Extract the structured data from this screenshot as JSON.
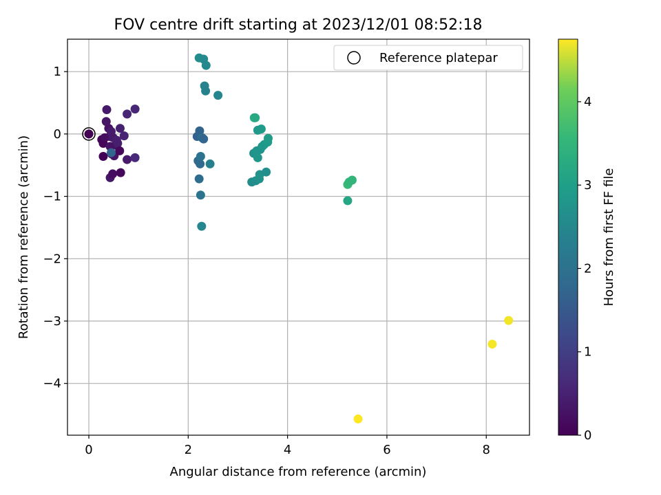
{
  "chart_data": {
    "type": "scatter",
    "title": "FOV centre drift starting at 2023/12/01 08:52:18",
    "xlabel": "Angular distance from reference (arcmin)",
    "ylabel": "Rotation from reference (arcmin)",
    "xlim": [
      -0.43,
      8.87
    ],
    "ylim": [
      -4.83,
      1.52
    ],
    "xticks": [
      0,
      2,
      4,
      6,
      8
    ],
    "xtick_labels": [
      "0",
      "2",
      "4",
      "6",
      "8"
    ],
    "yticks": [
      1,
      0,
      -1,
      -2,
      -3,
      -4
    ],
    "ytick_labels": [
      "1",
      "0",
      "−1",
      "−2",
      "−3",
      "−4"
    ],
    "grid": true,
    "legend": {
      "entries": [
        "Reference platepar"
      ],
      "placement": "top-right"
    },
    "colorbar": {
      "label": "Hours from first FF file",
      "colormap": "viridis",
      "range": [
        0,
        4.75
      ],
      "ticks": [
        0,
        1,
        2,
        3,
        4
      ],
      "tick_labels": [
        "0",
        "1",
        "2",
        "3",
        "4"
      ]
    },
    "reference_point": {
      "x": 0,
      "y": 0
    },
    "points": [
      {
        "x": 0.0,
        "y": 0.0,
        "hours": 0.0
      },
      {
        "x": 0.26,
        "y": -0.09,
        "hours": 0.05
      },
      {
        "x": 0.29,
        "y": -0.15,
        "hours": 0.08
      },
      {
        "x": 0.29,
        "y": -0.36,
        "hours": 0.04
      },
      {
        "x": 0.32,
        "y": -0.06,
        "hours": 0.15
      },
      {
        "x": 0.35,
        "y": 0.2,
        "hours": 0.3
      },
      {
        "x": 0.36,
        "y": 0.39,
        "hours": 0.35
      },
      {
        "x": 0.4,
        "y": 0.09,
        "hours": 0.25
      },
      {
        "x": 0.42,
        "y": -0.04,
        "hours": 0.2
      },
      {
        "x": 0.43,
        "y": -0.2,
        "hours": 0.28
      },
      {
        "x": 0.45,
        "y": 0.04,
        "hours": 0.4
      },
      {
        "x": 0.43,
        "y": -0.7,
        "hours": 0.32
      },
      {
        "x": 0.46,
        "y": -0.32,
        "hours": 0.22
      },
      {
        "x": 0.48,
        "y": -0.64,
        "hours": 0.18
      },
      {
        "x": 0.49,
        "y": -0.06,
        "hours": 0.36
      },
      {
        "x": 0.51,
        "y": -0.35,
        "hours": 0.3
      },
      {
        "x": 0.54,
        "y": -0.18,
        "hours": 0.26
      },
      {
        "x": 0.56,
        "y": -0.1,
        "hours": 0.45
      },
      {
        "x": 0.58,
        "y": -0.15,
        "hours": 0.42
      },
      {
        "x": 0.62,
        "y": -0.27,
        "hours": 0.1
      },
      {
        "x": 0.63,
        "y": 0.09,
        "hours": 0.48
      },
      {
        "x": 0.64,
        "y": -0.62,
        "hours": 0.12
      },
      {
        "x": 0.71,
        "y": -0.03,
        "hours": 0.52
      },
      {
        "x": 0.77,
        "y": 0.32,
        "hours": 0.55
      },
      {
        "x": 0.77,
        "y": -0.41,
        "hours": 0.38
      },
      {
        "x": 0.93,
        "y": 0.4,
        "hours": 0.58
      },
      {
        "x": 0.93,
        "y": -0.38,
        "hours": 0.6
      },
      {
        "x": 0.45,
        "y": -0.3,
        "hours": 1.75
      },
      {
        "x": 2.18,
        "y": -0.04,
        "hours": 1.65
      },
      {
        "x": 2.2,
        "y": -0.43,
        "hours": 1.8
      },
      {
        "x": 2.23,
        "y": 0.05,
        "hours": 1.7
      },
      {
        "x": 2.22,
        "y": -0.72,
        "hours": 1.9
      },
      {
        "x": 2.24,
        "y": -0.48,
        "hours": 1.85
      },
      {
        "x": 2.25,
        "y": -0.36,
        "hours": 2.0
      },
      {
        "x": 2.25,
        "y": -0.98,
        "hours": 2.05
      },
      {
        "x": 2.28,
        "y": -0.06,
        "hours": 1.95
      },
      {
        "x": 2.31,
        "y": -0.08,
        "hours": 1.75
      },
      {
        "x": 2.27,
        "y": -1.48,
        "hours": 2.45
      },
      {
        "x": 2.22,
        "y": 1.22,
        "hours": 2.6
      },
      {
        "x": 2.31,
        "y": 1.2,
        "hours": 2.55
      },
      {
        "x": 2.36,
        "y": 1.1,
        "hours": 2.5
      },
      {
        "x": 2.33,
        "y": 0.77,
        "hours": 2.4
      },
      {
        "x": 2.35,
        "y": 0.69,
        "hours": 2.35
      },
      {
        "x": 2.44,
        "y": -0.48,
        "hours": 2.3
      },
      {
        "x": 2.6,
        "y": 0.62,
        "hours": 2.45
      },
      {
        "x": 3.28,
        "y": -0.77,
        "hours": 2.6
      },
      {
        "x": 3.32,
        "y": -0.31,
        "hours": 2.7
      },
      {
        "x": 3.33,
        "y": 0.26,
        "hours": 3.3
      },
      {
        "x": 3.35,
        "y": 0.26,
        "hours": 3.2
      },
      {
        "x": 3.36,
        "y": -0.75,
        "hours": 2.65
      },
      {
        "x": 3.38,
        "y": -0.27,
        "hours": 2.75
      },
      {
        "x": 3.4,
        "y": -0.38,
        "hours": 2.8
      },
      {
        "x": 3.4,
        "y": 0.06,
        "hours": 2.85
      },
      {
        "x": 3.43,
        "y": -0.72,
        "hours": 2.68
      },
      {
        "x": 3.44,
        "y": -0.65,
        "hours": 2.72
      },
      {
        "x": 3.45,
        "y": -0.25,
        "hours": 2.78
      },
      {
        "x": 3.47,
        "y": 0.08,
        "hours": 2.9
      },
      {
        "x": 3.49,
        "y": -0.2,
        "hours": 2.82
      },
      {
        "x": 3.53,
        "y": -0.17,
        "hours": 2.86
      },
      {
        "x": 3.57,
        "y": -0.61,
        "hours": 2.62
      },
      {
        "x": 3.6,
        "y": -0.13,
        "hours": 2.88
      },
      {
        "x": 3.61,
        "y": -0.07,
        "hours": 2.92
      },
      {
        "x": 5.21,
        "y": -1.07,
        "hours": 3.15
      },
      {
        "x": 5.21,
        "y": -0.81,
        "hours": 3.6
      },
      {
        "x": 5.24,
        "y": -0.77,
        "hours": 3.55
      },
      {
        "x": 5.3,
        "y": -0.74,
        "hours": 3.5
      },
      {
        "x": 5.42,
        "y": -4.57,
        "hours": 4.75
      },
      {
        "x": 8.12,
        "y": -3.37,
        "hours": 4.72
      },
      {
        "x": 8.45,
        "y": -2.99,
        "hours": 4.7
      }
    ]
  }
}
